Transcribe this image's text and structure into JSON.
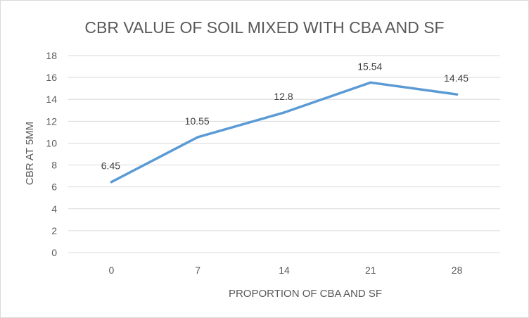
{
  "chart_data": {
    "type": "line",
    "title": "CBR VALUE OF SOIL MIXED WITH CBA AND SF",
    "xlabel": "PROPORTION OF CBA AND SF",
    "ylabel": "CBR AT 5MM",
    "categories": [
      "0",
      "7",
      "14",
      "21",
      "28"
    ],
    "series": [
      {
        "name": "CBR AT 5MM",
        "values": [
          6.45,
          10.55,
          12.8,
          15.54,
          14.45
        ],
        "labels": [
          "6.45",
          "10.55",
          "12.8",
          "15.54",
          "14.45"
        ],
        "color": "#5b9bd5"
      }
    ],
    "ylim": [
      0,
      18
    ],
    "yticks": [
      "0",
      "2",
      "4",
      "6",
      "8",
      "10",
      "12",
      "14",
      "16",
      "18"
    ],
    "grid": true,
    "legend": "none"
  }
}
